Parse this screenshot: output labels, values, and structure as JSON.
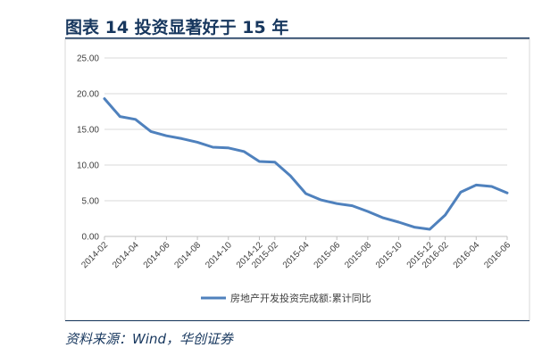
{
  "figure": {
    "title": "图表 14 投资显著好于 15 年",
    "source": "资料来源：Wind，华创证券"
  },
  "chart_data": {
    "type": "line",
    "title": "",
    "xlabel": "",
    "ylabel": "",
    "ylim": [
      0,
      25
    ],
    "yticks": [
      "0.00",
      "5.00",
      "10.00",
      "15.00",
      "20.00",
      "25.00"
    ],
    "grid": true,
    "legend_position": "bottom",
    "x": [
      "2014-02",
      "2014-03",
      "2014-04",
      "2014-05",
      "2014-06",
      "2014-07",
      "2014-08",
      "2014-09",
      "2014-10",
      "2014-11",
      "2014-12",
      "2015-02",
      "2015-03",
      "2015-04",
      "2015-05",
      "2015-06",
      "2015-07",
      "2015-08",
      "2015-09",
      "2015-10",
      "2015-11",
      "2015-12",
      "2016-02",
      "2016-03",
      "2016-04",
      "2016-05",
      "2016-06"
    ],
    "xtick_labels": [
      "2014-02",
      "2014-04",
      "2014-06",
      "2014-08",
      "2014-10",
      "2014-12",
      "2015-02",
      "2015-04",
      "2015-06",
      "2015-08",
      "2015-10",
      "2015-12",
      "2016-02",
      "2016-04",
      "2016-06"
    ],
    "series": [
      {
        "name": "房地产开发投资完成额:累计同比",
        "color": "#4f81bd",
        "values": [
          19.3,
          16.8,
          16.4,
          14.7,
          14.1,
          13.7,
          13.2,
          12.5,
          12.4,
          11.9,
          10.5,
          10.4,
          8.5,
          6.0,
          5.1,
          4.6,
          4.3,
          3.5,
          2.6,
          2.0,
          1.3,
          1.0,
          3.0,
          6.2,
          7.2,
          7.0,
          6.1
        ]
      }
    ]
  }
}
